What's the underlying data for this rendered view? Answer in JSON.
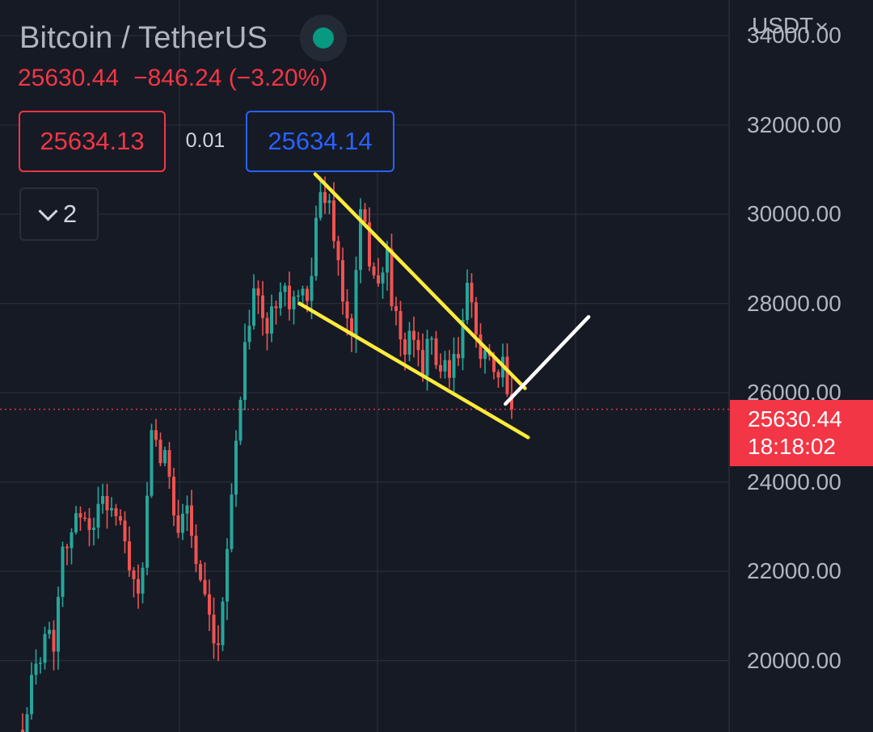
{
  "header": {
    "title": "Bitcoin / TetherUS",
    "last_price": "25630.44",
    "change": "−846.24",
    "change_pct": "(−3.20%)",
    "bid": "25634.13",
    "spread": "0.01",
    "ask": "25634.14",
    "indicators_count": "2",
    "currency": "USDT"
  },
  "price_tag": {
    "price": "25630.44",
    "countdown": "18:18:02"
  },
  "colors": {
    "background": "#161a25",
    "grid": "#2a2e39",
    "up": "#26a69a",
    "down": "#ef5350",
    "pattern_lines": "#ffeb3b",
    "projection_line": "#ffffff",
    "price_line": "#f23645"
  },
  "chart_data": {
    "type": "candlestick",
    "yaxis": {
      "ticks": [
        "20000.00",
        "22000.00",
        "24000.00",
        "26000.00",
        "28000.00",
        "30000.00",
        "32000.00",
        "34000.00"
      ],
      "ylim": [
        18400,
        34800
      ],
      "position": "right"
    },
    "grid": true,
    "current_price": 25630.44,
    "trend_points": [
      [
        0,
        18600
      ],
      [
        3,
        19800
      ],
      [
        5,
        20800
      ],
      [
        7,
        20400
      ],
      [
        9,
        22700
      ],
      [
        11,
        22900
      ],
      [
        14,
        23400
      ],
      [
        16,
        22900
      ],
      [
        18,
        23800
      ],
      [
        21,
        23200
      ],
      [
        23,
        22600
      ],
      [
        25,
        21500
      ],
      [
        27,
        22000
      ],
      [
        29,
        24900
      ],
      [
        31,
        24600
      ],
      [
        33,
        24200
      ],
      [
        35,
        23000
      ],
      [
        37,
        23500
      ],
      [
        39,
        22200
      ],
      [
        42,
        20700
      ],
      [
        44,
        20000
      ],
      [
        46,
        22800
      ],
      [
        48,
        24800
      ],
      [
        50,
        27200
      ],
      [
        52,
        28400
      ],
      [
        55,
        27300
      ],
      [
        58,
        28600
      ],
      [
        60,
        28000
      ],
      [
        62,
        28100
      ],
      [
        64,
        27900
      ],
      [
        66,
        30000
      ],
      [
        68,
        30500
      ],
      [
        70,
        29700
      ],
      [
        72,
        28000
      ],
      [
        74,
        27300
      ],
      [
        76,
        29900
      ],
      [
        78,
        29100
      ],
      [
        80,
        28400
      ],
      [
        82,
        29000
      ],
      [
        84,
        27500
      ],
      [
        86,
        26900
      ],
      [
        88,
        27200
      ],
      [
        90,
        26700
      ],
      [
        92,
        27100
      ],
      [
        94,
        26500
      ],
      [
        96,
        26300
      ],
      [
        98,
        26900
      ],
      [
        100,
        28200
      ],
      [
        102,
        27300
      ],
      [
        104,
        26900
      ],
      [
        106,
        26200
      ],
      [
        108,
        26500
      ],
      [
        110,
        25700
      ]
    ],
    "annotations": [
      {
        "type": "line",
        "name": "upper-trendline",
        "color": "yellow",
        "from": [
          65.8,
          30900
        ],
        "to": [
          113,
          26100
        ]
      },
      {
        "type": "line",
        "name": "lower-trendline",
        "color": "yellow",
        "from": [
          62.3,
          28000
        ],
        "to": [
          113.7,
          25000
        ]
      },
      {
        "type": "line",
        "name": "projection-line",
        "color": "white",
        "from": [
          108.6,
          25750
        ],
        "to": [
          127.3,
          27700
        ]
      }
    ]
  }
}
